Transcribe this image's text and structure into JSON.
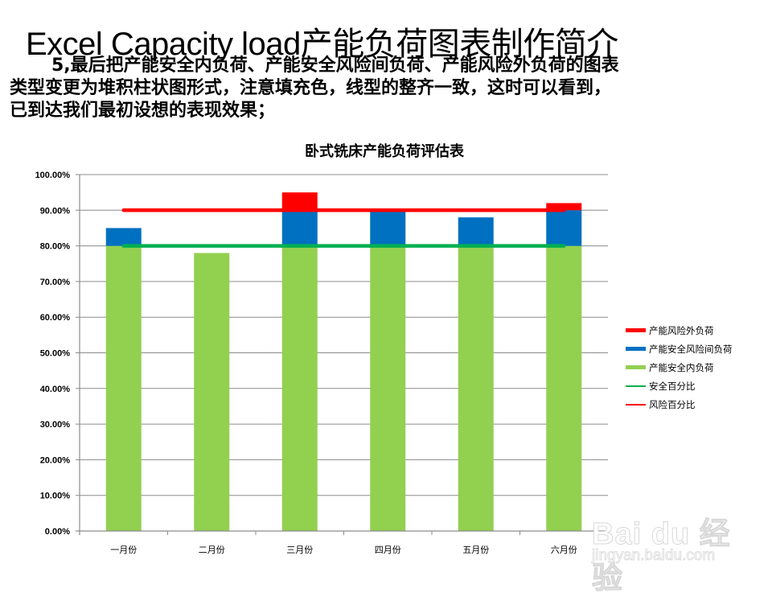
{
  "slide": {
    "title": "Excel Capacity load产能负荷图表制作简介",
    "body_lines": [
      "5,最后把产能安全内负荷、产能安全风险间负荷、产能风险外负荷的图表",
      "类型变更为堆积柱状图形式，注意填充色，线型的整齐一致，这时可以看到，",
      "已到达我们最初设想的表现效果；"
    ]
  },
  "watermark": {
    "brand": "Bai du 经验",
    "url": "jingyan.baidu.com"
  },
  "colors": {
    "inner_load": "#92D050",
    "risk_between": "#0070C0",
    "risk_outer": "#FF0000",
    "safe_line": "#00B050",
    "risk_line": "#FF0000",
    "gridline": "#8C8C8C"
  },
  "chart_data": {
    "type": "bar",
    "stacked": true,
    "title": "卧式铣床产能负荷评估表",
    "xlabel": "",
    "ylabel": "",
    "categories": [
      "一月份",
      "二月份",
      "三月份",
      "四月份",
      "五月份",
      "六月份"
    ],
    "series": [
      {
        "name": "产能安全内负荷",
        "kind": "bar",
        "color": "#92D050",
        "values": [
          80,
          78,
          80,
          80,
          80,
          80
        ]
      },
      {
        "name": "产能安全风险间负荷",
        "kind": "bar",
        "color": "#0070C0",
        "values": [
          5,
          0,
          10,
          10,
          8,
          10
        ]
      },
      {
        "name": "产能风险外负荷",
        "kind": "bar",
        "color": "#FF0000",
        "values": [
          0,
          0,
          5,
          0,
          0,
          2
        ]
      },
      {
        "name": "安全百分比",
        "kind": "line",
        "color": "#00B050",
        "values": [
          80,
          80,
          80,
          80,
          80,
          80
        ]
      },
      {
        "name": "风险百分比",
        "kind": "line",
        "color": "#FF0000",
        "values": [
          90,
          90,
          90,
          90,
          90,
          90
        ]
      }
    ],
    "ylim": [
      0,
      100
    ],
    "yticks": [
      "0.00%",
      "10.00%",
      "20.00%",
      "30.00%",
      "40.00%",
      "50.00%",
      "60.00%",
      "70.00%",
      "80.00%",
      "90.00%",
      "100.00%"
    ],
    "grid": true,
    "legend_position": "right",
    "legend": [
      "产能风险外负荷",
      "产能安全风险间负荷",
      "产能安全内负荷",
      "安全百分比",
      "风险百分比"
    ]
  }
}
